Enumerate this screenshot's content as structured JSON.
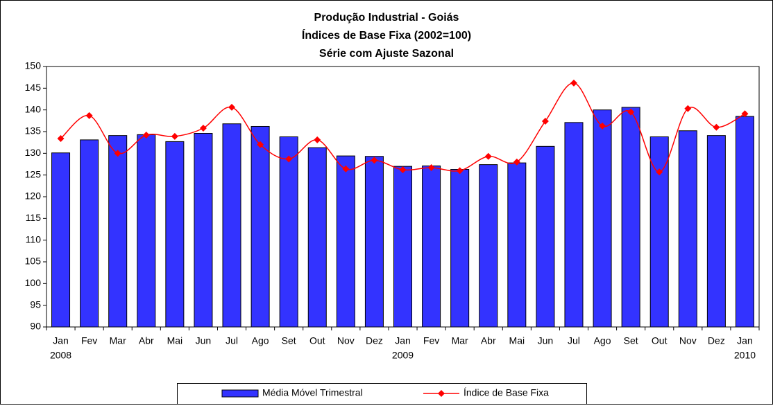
{
  "chart_data": {
    "type": "bar-line",
    "title": "Produção Industrial - Goiás",
    "subtitle": [
      "Índices de Base Fixa (2002=100)",
      "Série com Ajuste Sazonal"
    ],
    "categories": [
      "Jan",
      "Fev",
      "Mar",
      "Abr",
      "Mai",
      "Jun",
      "Jul",
      "Ago",
      "Set",
      "Out",
      "Nov",
      "Dez",
      "Jan",
      "Fev",
      "Mar",
      "Abr",
      "Mai",
      "Jun",
      "Jul",
      "Ago",
      "Set",
      "Out",
      "Nov",
      "Dez",
      "Jan"
    ],
    "year_labels": [
      "2008",
      null,
      null,
      null,
      null,
      null,
      null,
      null,
      null,
      null,
      null,
      null,
      "2009",
      null,
      null,
      null,
      null,
      null,
      null,
      null,
      null,
      null,
      null,
      null,
      "2010"
    ],
    "series": [
      {
        "name": "Média Móvel Trimestral",
        "type": "bar",
        "color": "#3333ff",
        "values": [
          130.1,
          133.1,
          134.1,
          134.3,
          132.7,
          134.6,
          136.8,
          136.2,
          133.8,
          131.3,
          129.4,
          129.3,
          127.0,
          127.1,
          126.3,
          127.4,
          127.8,
          131.6,
          137.1,
          140.0,
          140.6,
          133.8,
          135.2,
          134.1,
          138.5
        ]
      },
      {
        "name": "Índice de Base Fixa",
        "type": "line",
        "color": "#ff0000",
        "values": [
          133.4,
          138.7,
          130.0,
          134.2,
          133.9,
          135.8,
          140.6,
          132.0,
          128.7,
          133.1,
          126.4,
          128.4,
          126.2,
          126.7,
          126.0,
          129.3,
          128.0,
          137.4,
          146.2,
          136.3,
          139.5,
          125.7,
          140.3,
          136.0,
          139.1
        ]
      }
    ],
    "ylim": [
      90,
      150
    ],
    "yticks": [
      90,
      95,
      100,
      105,
      110,
      115,
      120,
      125,
      130,
      135,
      140,
      145,
      150
    ],
    "grid": false,
    "legend": "bottom"
  }
}
